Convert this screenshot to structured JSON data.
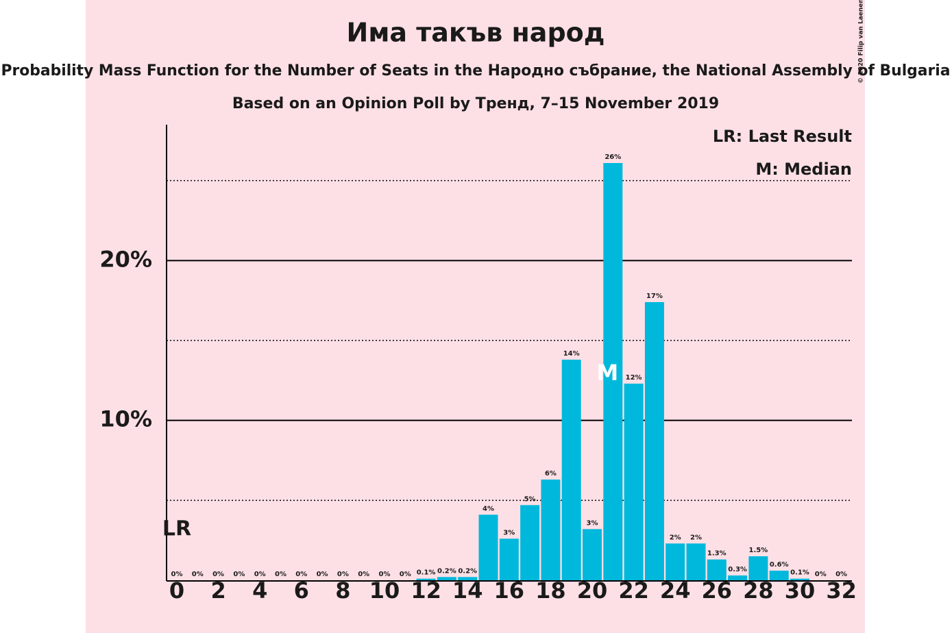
{
  "chart_data": {
    "type": "bar",
    "title": "Има такъв народ",
    "subtitle": "Probability Mass Function for the Number of Seats in the Народно събрание, the National Assembly of Bulgaria",
    "source": "Based on an Opinion Poll by Тренд, 7–15 November 2019",
    "copyright": "© 2020 Filip van Laenen",
    "categories": [
      0,
      null,
      2,
      null,
      4,
      null,
      6,
      null,
      8,
      null,
      10,
      null,
      12,
      null,
      14,
      null,
      16,
      null,
      18,
      null,
      20,
      null,
      22,
      null,
      24,
      null,
      26,
      null,
      28,
      null,
      30,
      null,
      32
    ],
    "values": [
      0,
      0,
      0,
      0,
      0,
      0,
      0,
      0,
      0,
      0,
      0,
      0,
      0.1,
      0.2,
      0.2,
      4.1,
      2.6,
      4.7,
      6.3,
      13.8,
      3.2,
      26.1,
      12.3,
      17.4,
      2.3,
      2.3,
      1.3,
      0.3,
      1.5,
      0.6,
      0.1,
      0,
      0
    ],
    "value_labels": [
      "0%",
      "0%",
      "0%",
      "0%",
      "0%",
      "0%",
      "0%",
      "0%",
      "0%",
      "0%",
      "0%",
      "0%",
      "0.1%",
      "0.2%",
      "0.2%",
      "4%",
      "3%",
      "5%",
      "6%",
      "14%",
      "3%",
      "26%",
      "12%",
      "17%",
      "2%",
      "2%",
      "1.3%",
      "0.3%",
      "1.5%",
      "0.6%",
      "0.1%",
      "0%",
      "0%"
    ],
    "color": "#00b8dc",
    "ylim": [
      0,
      28.5
    ],
    "yticks": [
      {
        "value": 10,
        "label": "10%"
      },
      {
        "value": 20,
        "label": "20%"
      }
    ],
    "minor_yticks": [
      5,
      15,
      25
    ],
    "grid": true,
    "annotations": {
      "last_result": {
        "label": "LR",
        "index": 0
      },
      "median": {
        "label": "M",
        "index": 21
      }
    },
    "legend": [
      "LR: Last Result",
      "M: Median"
    ]
  }
}
